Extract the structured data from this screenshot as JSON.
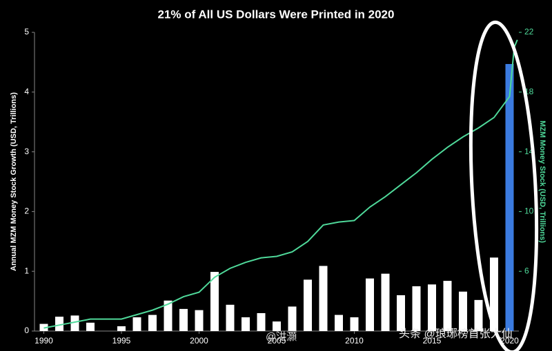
{
  "chart_data": {
    "type": "bar-line",
    "title": "21% of All US Dollars Were Printed in 2020",
    "y_label": "Annual MZM Money Stock Growth (USD, Trillions)",
    "y2_label": "MZM Money Stock (USD, Trillions)",
    "xlim": [
      1989.4,
      2020.6
    ],
    "xticks": [
      1990,
      1995,
      2000,
      2005,
      2010,
      2015,
      2020
    ],
    "ylim": [
      0,
      5
    ],
    "yticks": [
      0,
      1,
      2,
      3,
      4,
      5
    ],
    "y2lim": [
      2,
      22
    ],
    "y2ticks": [
      6,
      10,
      14,
      18,
      22
    ],
    "series": [
      {
        "type": "bar",
        "color": "#ffffff",
        "colors": [
          "#ffffff",
          "#ffffff",
          "#ffffff",
          "#ffffff",
          "#ffffff",
          "#ffffff",
          "#ffffff",
          "#ffffff",
          "#ffffff",
          "#ffffff",
          "#ffffff",
          "#ffffff",
          "#ffffff",
          "#ffffff",
          "#ffffff",
          "#ffffff",
          "#ffffff",
          "#ffffff",
          "#ffffff",
          "#ffffff",
          "#ffffff",
          "#ffffff",
          "#ffffff",
          "#ffffff",
          "#ffffff",
          "#ffffff",
          "#ffffff",
          "#ffffff",
          "#ffffff",
          "#ffffff",
          "#3b7be0"
        ],
        "x": [
          1990,
          1991,
          1992,
          1993,
          1994,
          1995,
          1996,
          1997,
          1998,
          1999,
          2000,
          2001,
          2002,
          2003,
          2004,
          2005,
          2006,
          2007,
          2008,
          2009,
          2010,
          2011,
          2012,
          2013,
          2014,
          2015,
          2016,
          2017,
          2018,
          2019,
          2020
        ],
        "values": [
          0.12,
          0.24,
          0.26,
          0.14,
          0,
          0.08,
          0.23,
          0.27,
          0.51,
          0.37,
          0.35,
          0.99,
          0.44,
          0.23,
          0.3,
          0.16,
          0.41,
          0.86,
          1.09,
          0.27,
          0.23,
          0.88,
          0.96,
          0.6,
          0.75,
          0.78,
          0.84,
          0.66,
          0.52,
          1.23,
          4.47
        ]
      },
      {
        "type": "line",
        "axis": "y2",
        "color": "#4fd99a",
        "x": [
          1990,
          1991,
          1992,
          1993,
          1994,
          1995,
          1996,
          1997,
          1998,
          1999,
          2000,
          2001,
          2002,
          2003,
          2004,
          2005,
          2006,
          2007,
          2008,
          2009,
          2010,
          2011,
          2012,
          2013,
          2014,
          2015,
          2016,
          2017,
          2018,
          2019,
          2020,
          2020.3,
          2020.5
        ],
        "values": [
          2.2,
          2.4,
          2.6,
          2.8,
          2.8,
          2.8,
          3.1,
          3.4,
          3.8,
          4.3,
          4.6,
          5.6,
          6.2,
          6.6,
          6.9,
          7.0,
          7.3,
          8.0,
          9.1,
          9.3,
          9.4,
          10.3,
          11.0,
          11.8,
          12.6,
          13.5,
          14.3,
          15.0,
          15.6,
          16.3,
          17.7,
          21.0,
          21.5
        ]
      }
    ],
    "watermarks": [
      "@洪灝",
      "头条 @琅琊榜首张大仙"
    ]
  }
}
